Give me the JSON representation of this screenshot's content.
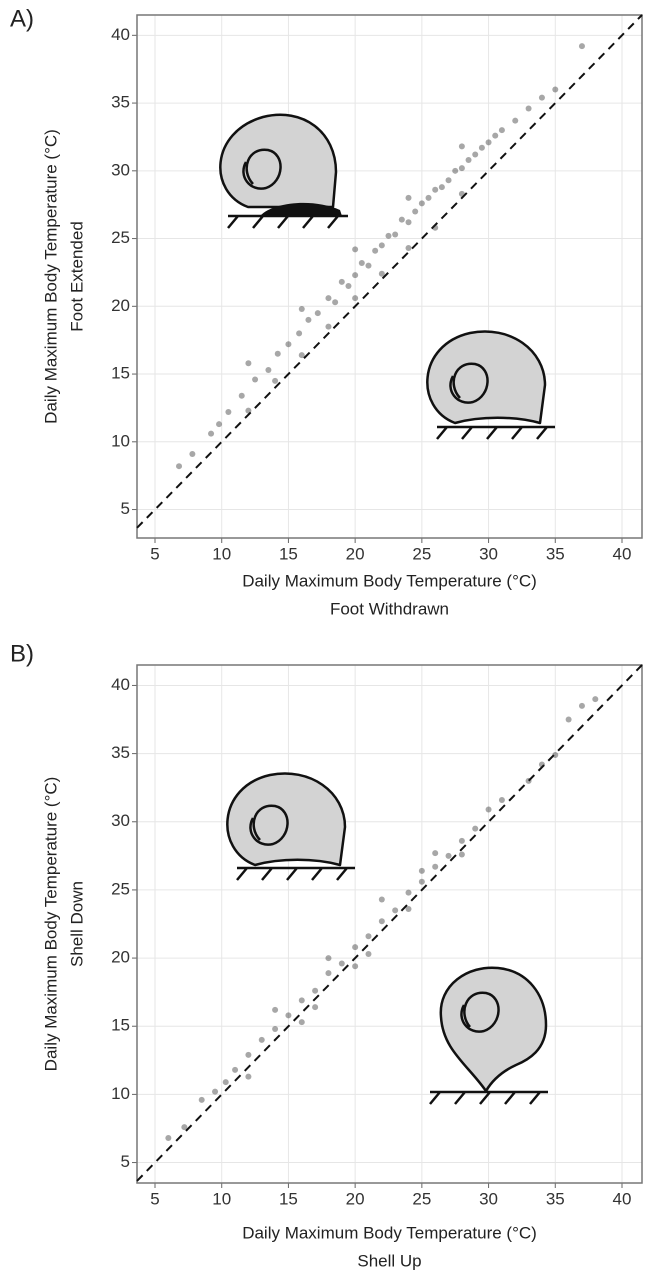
{
  "chart_data": [
    {
      "type": "scatter",
      "panel_label": "A)",
      "xlabel": [
        "Daily Maximum Body Temperature (°C)",
        "Foot Withdrawn"
      ],
      "ylabel": [
        "Daily Maximum Body Temperature (°C)",
        "Foot Extended"
      ],
      "xlim": [
        3.65,
        41.5
      ],
      "ylim": [
        2.9,
        41.5
      ],
      "xticks": [
        5,
        10,
        15,
        20,
        25,
        30,
        35,
        40
      ],
      "yticks": [
        5,
        10,
        15,
        20,
        25,
        30,
        35,
        40
      ],
      "grid": true,
      "color": "#222222",
      "opacity": 0.4,
      "x": [
        6.8,
        7.8,
        9.2,
        9.8,
        10.5,
        11.5,
        12.5,
        13.5,
        14.2,
        15,
        15.8,
        16.5,
        17.2,
        18,
        18.5,
        19,
        19.5,
        20,
        20.5,
        21,
        21.5,
        22,
        22.5,
        23,
        23.5,
        24,
        24.5,
        25,
        25.5,
        26,
        26.5,
        27,
        27.5,
        28,
        28.5,
        29,
        29.5,
        30,
        30.5,
        31,
        32,
        33,
        34,
        35,
        37,
        12,
        14,
        16,
        18,
        20,
        22,
        24,
        26,
        28,
        12,
        16,
        20,
        24,
        28
      ],
      "y": [
        8.2,
        9.1,
        10.6,
        11.3,
        12.2,
        13.4,
        14.6,
        15.3,
        16.5,
        17.2,
        18,
        19,
        19.5,
        20.6,
        20.3,
        21.8,
        21.5,
        22.3,
        23.2,
        23,
        24.1,
        24.5,
        25.2,
        25.3,
        26.4,
        26.2,
        27,
        27.6,
        28,
        28.6,
        28.8,
        29.3,
        30,
        30.2,
        30.8,
        31.2,
        31.7,
        32.1,
        32.6,
        33,
        33.7,
        34.6,
        35.4,
        36,
        39.2,
        12.3,
        14.5,
        16.4,
        18.5,
        20.6,
        22.4,
        24.3,
        25.8,
        28.3,
        15.8,
        19.8,
        24.2,
        28,
        31.8
      ]
    },
    {
      "type": "scatter",
      "panel_label": "B)",
      "xlabel": [
        "Daily Maximum Body Temperature (°C)",
        "Shell Up"
      ],
      "ylabel": [
        "Daily Maximum Body Temperature (°C)",
        "Shell Down"
      ],
      "xlim": [
        3.65,
        41.5
      ],
      "ylim": [
        3.5,
        41.5
      ],
      "xticks": [
        5,
        10,
        15,
        20,
        25,
        30,
        35,
        40
      ],
      "yticks": [
        5,
        10,
        15,
        20,
        25,
        30,
        35,
        40
      ],
      "grid": true,
      "color": "#222222",
      "opacity": 0.4,
      "x": [
        6,
        7.2,
        8.5,
        9.5,
        10.3,
        11,
        12,
        13,
        14,
        15,
        16,
        17,
        18,
        19,
        20,
        21,
        22,
        23,
        24,
        25,
        26,
        27,
        28,
        29,
        30,
        31,
        33,
        34,
        35,
        36,
        37,
        38,
        14,
        18,
        22,
        26,
        12,
        16,
        20,
        24,
        28,
        17,
        25,
        21
      ],
      "y": [
        6.8,
        7.6,
        9.6,
        10.2,
        10.9,
        11.8,
        12.9,
        14,
        14.8,
        15.8,
        16.9,
        17.6,
        18.9,
        19.6,
        20.8,
        21.6,
        22.7,
        23.5,
        24.8,
        25.6,
        26.7,
        27.5,
        28.6,
        29.5,
        30.9,
        31.6,
        33,
        34.2,
        34.9,
        37.5,
        38.5,
        39,
        16.2,
        20,
        24.3,
        27.7,
        11.3,
        15.3,
        19.4,
        23.6,
        27.6,
        16.4,
        26.4,
        20.3
      ]
    }
  ]
}
